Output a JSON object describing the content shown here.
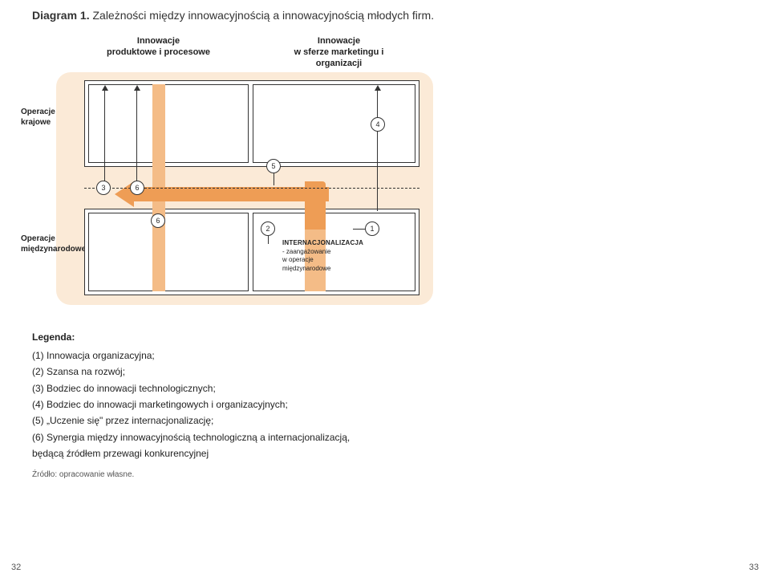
{
  "title_prefix": "Diagram 1.",
  "title_rest": " Zależności między innowacyjnością a innowacyjnością młodych firm.",
  "headers": {
    "left": "Innowacje\nproduktowe i procesowe",
    "right": "Innowacje\nw sferze marketingu i organizacji"
  },
  "side_labels": {
    "top": "Operacje\nkrajowe",
    "bottom": "Operacje\nmiędzynarodowe"
  },
  "numbers": {
    "n1": "1",
    "n2": "2",
    "n3": "3",
    "n4": "4",
    "n5": "5",
    "n6a": "6",
    "n6b": "6"
  },
  "intern": {
    "title": "INTERNACJONALIZACJA",
    "line1": "- zaangażowanie",
    "line2": "w operacje",
    "line3": "międzynarodowe"
  },
  "legend": {
    "heading": "Legenda:",
    "items": [
      "(1) Innowacja organizacyjna;",
      "(2) Szansa na rozwój;",
      "(3) Bodziec do innowacji technologicznych;",
      "(4) Bodziec do innowacji marketingowych i organizacyjnych;",
      "(5) „Uczenie się\" przez internacjonalizację;",
      "(6) Synergia między innowacyjnością technologiczną a internacjonalizacją,",
      "będącą źródłem przewagi konkurencyjnej"
    ]
  },
  "source": "Źródło: opracowanie własne.",
  "page_left": "32",
  "page_right": "33",
  "colors": {
    "figure_bg": "#fbead7",
    "bar_light": "#f4bc87",
    "arrow": "#ee9d55",
    "box_border": "#333333",
    "text": "#2b2b2b"
  }
}
